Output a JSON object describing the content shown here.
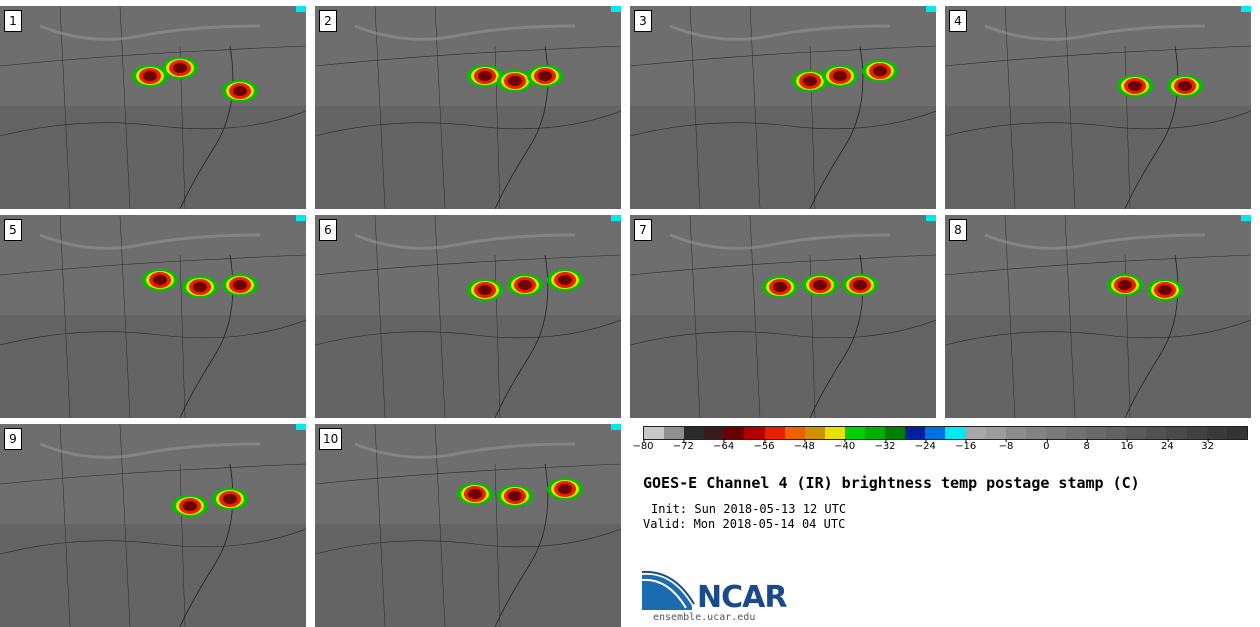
{
  "panels": [
    {
      "label": "1"
    },
    {
      "label": "2"
    },
    {
      "label": "3"
    },
    {
      "label": "4"
    },
    {
      "label": "5"
    },
    {
      "label": "6"
    },
    {
      "label": "7"
    },
    {
      "label": "8"
    },
    {
      "label": "9"
    },
    {
      "label": "10"
    }
  ],
  "colorbar": {
    "colors": [
      "#c8c8c8",
      "#8e8e8e",
      "#2a2a2a",
      "#3a1a1a",
      "#6a0000",
      "#b00000",
      "#e82000",
      "#f06000",
      "#d09000",
      "#e8e000",
      "#00d000",
      "#00b000",
      "#008000",
      "#0020a0",
      "#0070e0",
      "#00e8f0",
      "#a8a8a8",
      "#9c9c9c",
      "#8c8c8c",
      "#828282",
      "#7a7a7a",
      "#727272",
      "#6a6a6a",
      "#626262",
      "#5a5a5a",
      "#525252",
      "#4a4a4a",
      "#424242",
      "#3a3a3a",
      "#333333"
    ],
    "tick_labels": [
      "−80",
      "−72",
      "−64",
      "−56",
      "−48",
      "−40",
      "−32",
      "−24",
      "−16",
      "−8",
      "0",
      "8",
      "16",
      "24",
      "32"
    ]
  },
  "title": "GOES-E Channel 4 (IR) brightness temp postage stamp (C)",
  "init": "Init: Sun 2018-05-13 12 UTC",
  "valid": "Valid: Mon 2018-05-14 04 UTC",
  "logo": {
    "name": "NCAR",
    "url": "ensemble.ucar.edu",
    "brand_color": "#1a4a8a"
  }
}
